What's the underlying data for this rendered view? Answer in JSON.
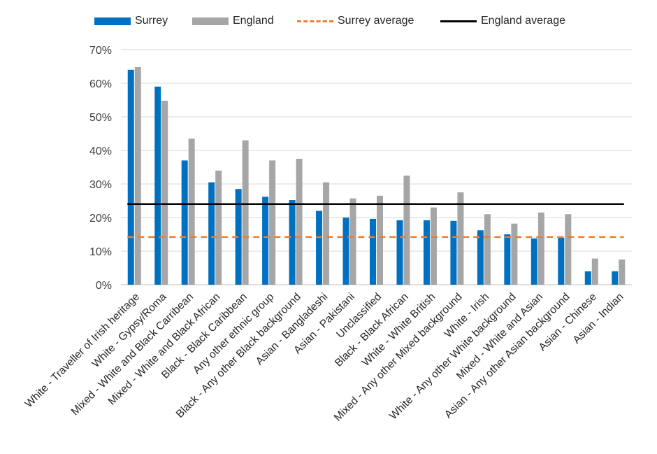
{
  "chart_data": {
    "type": "bar",
    "title": "",
    "xlabel": "",
    "ylabel": "",
    "ylim": [
      0,
      70
    ],
    "ytick_labels": [
      "0%",
      "10%",
      "20%",
      "30%",
      "40%",
      "50%",
      "60%",
      "70%"
    ],
    "grid": true,
    "legend_position": "top",
    "categories": [
      "White - Traveller of Irish heritage",
      "White - Gypsy/Roma",
      "Mixed - White and Black Carribean",
      "Mixed - White and Black African",
      "Black - Black Caribbean",
      "Any other ethnic group",
      "Black - Any other Black background",
      "Asian - Bangladeshi",
      "Asian - Pakistani",
      "Unclassified",
      "Black - Black African",
      "White - White British",
      "Mixed - Any other Mixed background",
      "White - Irish",
      "White - Any other White background",
      "Mixed - White and Asian",
      "Asian - Any other Asian background",
      "Asian - Chinese",
      "Asian - Indian"
    ],
    "series": [
      {
        "name": "Surrey",
        "color": "#0070C0",
        "values": [
          64,
          59,
          37,
          30.5,
          28.5,
          26.2,
          25.2,
          22,
          20,
          19.6,
          19.2,
          19.2,
          19,
          16.2,
          15,
          13.8,
          14,
          4,
          4
        ]
      },
      {
        "name": "England",
        "color": "#A6A6A6",
        "values": [
          64.8,
          54.8,
          43.5,
          34,
          43,
          37,
          37.5,
          30.5,
          25.7,
          26.5,
          32.5,
          23,
          27.5,
          21,
          18.2,
          21.5,
          21,
          7.8,
          7.5
        ]
      }
    ],
    "reference_lines": [
      {
        "name": "Surrey average",
        "value": 14.2,
        "color": "#ED7D31",
        "style": "dashed"
      },
      {
        "name": "England average",
        "value": 24,
        "color": "#000000",
        "style": "solid"
      }
    ]
  }
}
